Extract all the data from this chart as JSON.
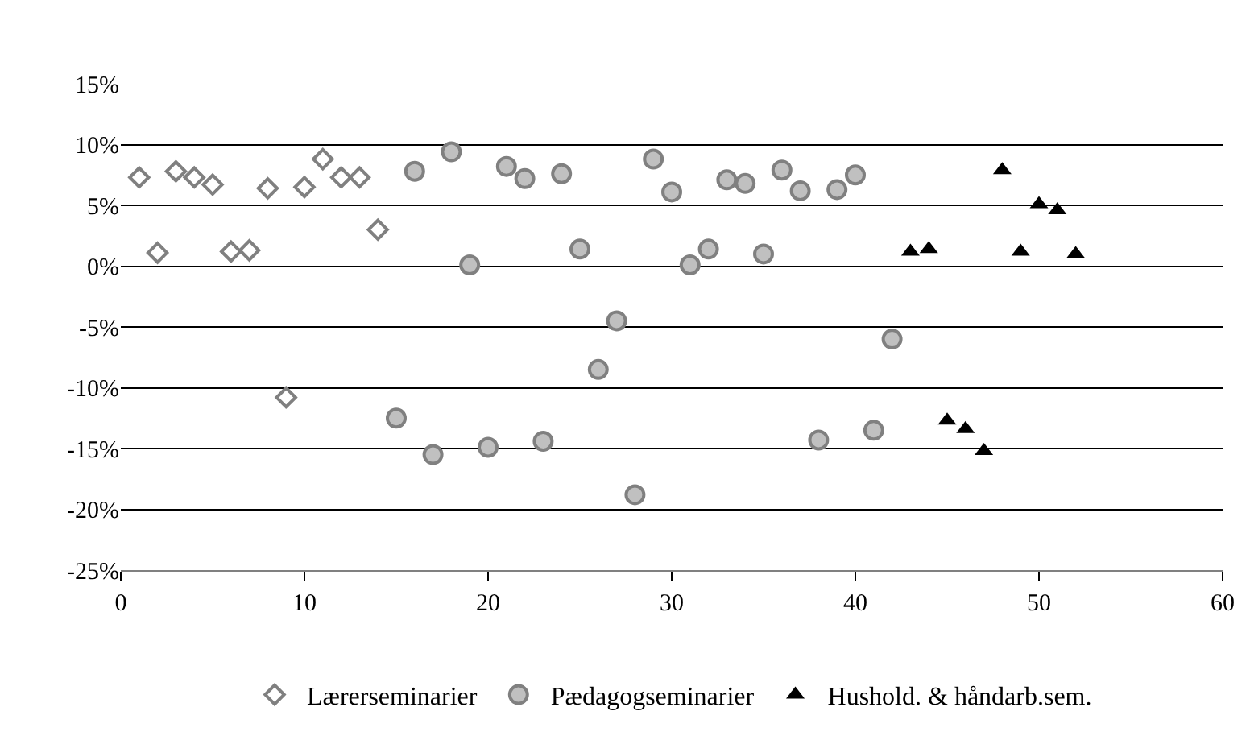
{
  "chart_data": {
    "type": "scatter",
    "xlim": [
      0,
      60
    ],
    "xticks": [
      0,
      10,
      20,
      30,
      40,
      50,
      60
    ],
    "ylim": [
      -25,
      15
    ],
    "yticks": [
      {
        "value": -25,
        "label": "-25%"
      },
      {
        "value": -20,
        "label": "-20%"
      },
      {
        "value": -15,
        "label": "-15%"
      },
      {
        "value": -10,
        "label": "-10%"
      },
      {
        "value": -5,
        "label": "-5%"
      },
      {
        "value": 0,
        "label": "0%"
      },
      {
        "value": 5,
        "label": "5%"
      },
      {
        "value": 10,
        "label": "10%"
      },
      {
        "value": 15,
        "label": "15%"
      }
    ],
    "grid": "y",
    "legend": "bottom",
    "series": [
      {
        "name": "Lærerseminarier",
        "color": "#808080",
        "marker": "diamond",
        "x": [
          1,
          2,
          3,
          4,
          5,
          6,
          7,
          8,
          9,
          10,
          11,
          12,
          13,
          14
        ],
        "values": [
          7.3,
          1.1,
          7.8,
          7.3,
          6.7,
          1.2,
          1.3,
          6.4,
          -10.8,
          6.5,
          8.8,
          7.3,
          7.3,
          3.0
        ]
      },
      {
        "name": "Pædagogseminarier",
        "color": "#c0c0c0",
        "marker": "circle",
        "x": [
          15,
          16,
          17,
          18,
          19,
          20,
          21,
          22,
          23,
          24,
          25,
          26,
          27,
          28,
          29,
          30,
          31,
          32,
          33,
          34,
          35,
          36,
          37,
          38,
          39,
          40,
          41,
          42
        ],
        "values": [
          -12.5,
          7.8,
          -15.5,
          9.4,
          0.1,
          -14.9,
          8.2,
          7.2,
          -14.4,
          7.6,
          1.4,
          -8.5,
          -4.5,
          -18.8,
          8.8,
          6.1,
          0.1,
          1.4,
          7.1,
          6.8,
          1.0,
          7.9,
          6.2,
          -14.3,
          6.3,
          7.5,
          -13.5,
          -6.0
        ]
      },
      {
        "name": "Hushold. & håndarb.sem.",
        "color": "#000000",
        "marker": "triangle",
        "x": [
          43,
          44,
          45,
          46,
          47,
          48,
          49,
          50,
          51,
          52
        ],
        "values": [
          1.2,
          1.4,
          -12.7,
          -13.4,
          -15.2,
          7.9,
          1.2,
          5.1,
          4.6,
          1.0
        ]
      }
    ]
  }
}
